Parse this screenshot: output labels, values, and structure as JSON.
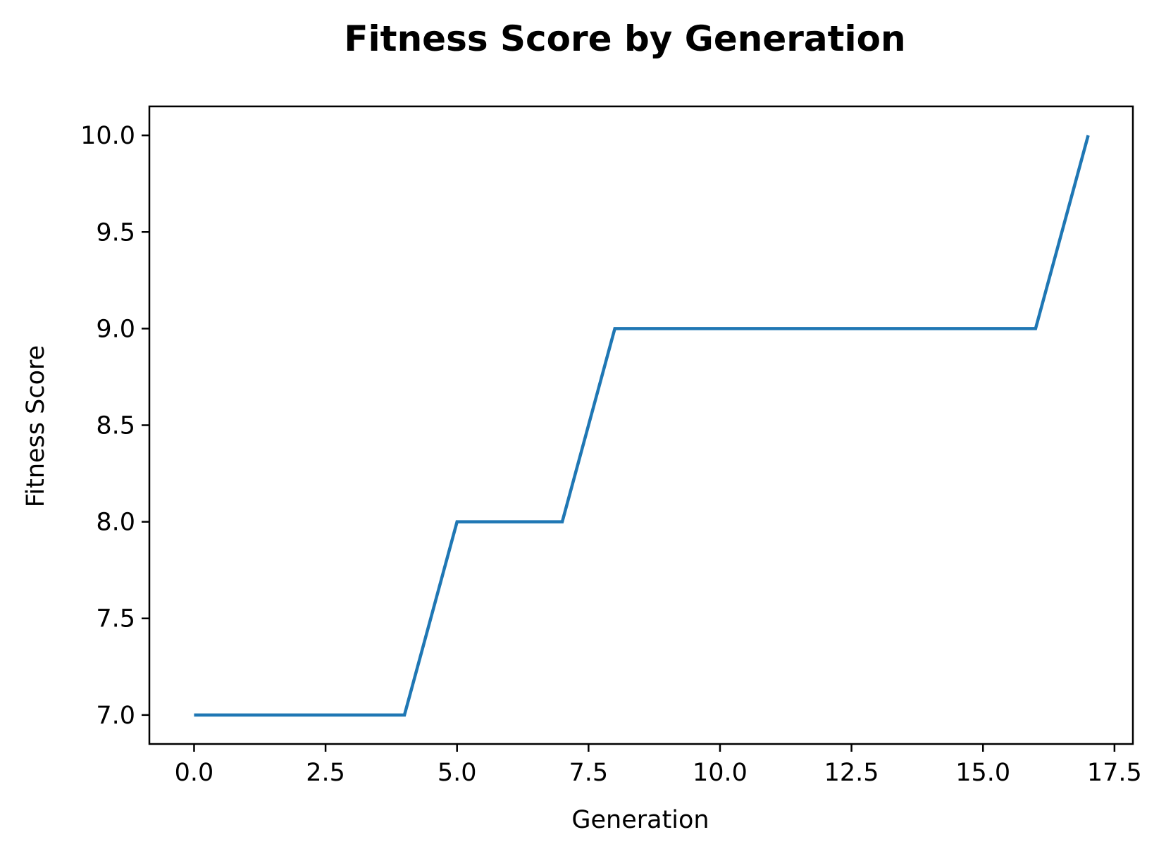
{
  "chart_data": {
    "type": "line",
    "title": "Fitness Score by Generation",
    "xlabel": "Generation",
    "ylabel": "Fitness Score",
    "xlim": [
      -0.85,
      17.85
    ],
    "ylim": [
      6.85,
      10.15
    ],
    "x_ticks": [
      0.0,
      2.5,
      5.0,
      7.5,
      10.0,
      12.5,
      15.0,
      17.5
    ],
    "x_tick_labels": [
      "0.0",
      "2.5",
      "5.0",
      "7.5",
      "10.0",
      "12.5",
      "15.0",
      "17.5"
    ],
    "y_ticks": [
      7.0,
      7.5,
      8.0,
      8.5,
      9.0,
      9.5,
      10.0
    ],
    "y_tick_labels": [
      "7.0",
      "7.5",
      "8.0",
      "8.5",
      "9.0",
      "9.5",
      "10.0"
    ],
    "grid": false,
    "x": [
      0,
      1,
      2,
      3,
      4,
      5,
      6,
      7,
      8,
      9,
      10,
      11,
      12,
      13,
      14,
      15,
      16,
      17
    ],
    "series": [
      {
        "color": "#1f77b4",
        "values": [
          7,
          7,
          7,
          7,
          7,
          8,
          8,
          8,
          9,
          9,
          9,
          9,
          9,
          9,
          9,
          9,
          9,
          10
        ]
      }
    ]
  }
}
